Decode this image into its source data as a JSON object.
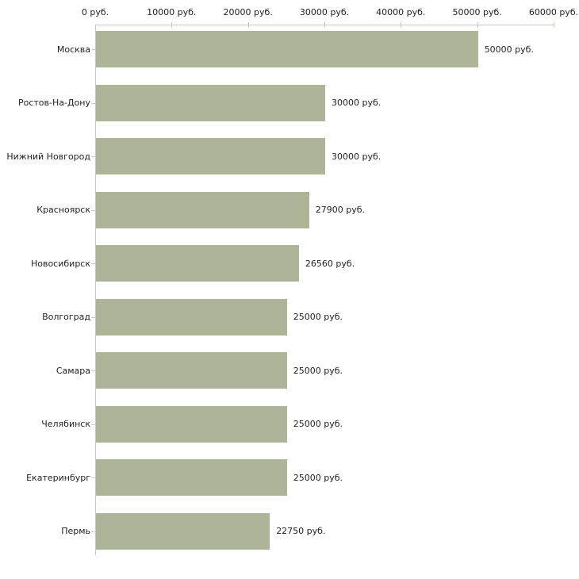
{
  "chart_data": {
    "type": "bar",
    "orientation": "horizontal",
    "title": "",
    "categories": [
      "Москва",
      "Ростов-На-Дону",
      "Нижний Новгород",
      "Красноярск",
      "Новосибирск",
      "Волгоград",
      "Самара",
      "Челябинск",
      "Екатеринбург",
      "Пермь"
    ],
    "values": [
      50000,
      30000,
      30000,
      27900,
      26560,
      25000,
      25000,
      25000,
      25000,
      22750
    ],
    "value_labels": [
      "50000 руб.",
      "30000 руб.",
      "30000 руб.",
      "27900 руб.",
      "26560 руб.",
      "25000 руб.",
      "25000 руб.",
      "25000 руб.",
      "25000 руб.",
      "22750 руб."
    ],
    "x_axis": {
      "position": "top",
      "min": 0,
      "max": 60000,
      "ticks": [
        0,
        10000,
        20000,
        30000,
        40000,
        50000,
        60000
      ],
      "tick_labels": [
        "0 руб.",
        "10000 руб.",
        "20000 руб.",
        "30000 руб.",
        "40000 руб.",
        "50000 руб.",
        "60000 руб."
      ]
    },
    "grid": false,
    "legend": false,
    "bar_color": "#adb498",
    "axis_color": "#c8c8c8",
    "tick_color": "#cfc9b9",
    "text_color": "#222222"
  }
}
